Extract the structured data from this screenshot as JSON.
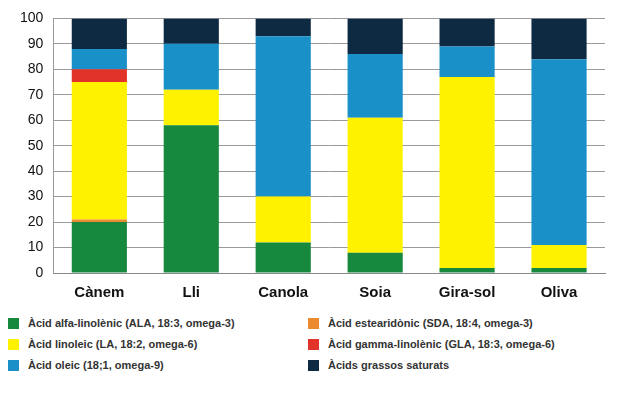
{
  "chart_data": {
    "type": "bar",
    "stacked": true,
    "grid": true,
    "legend": "bottom",
    "categories": [
      "Cànem",
      "Lli",
      "Canola",
      "Soia",
      "Gira-sol",
      "Oliva"
    ],
    "ylim": [
      0,
      100
    ],
    "yticks": [
      0,
      10,
      20,
      30,
      40,
      50,
      60,
      70,
      80,
      90,
      100
    ],
    "series": [
      {
        "name": "Àcid alfa-linolènic (ALA, 18:3, omega-3)",
        "color": "#17893f",
        "values": [
          20,
          58,
          12,
          8,
          2,
          2
        ]
      },
      {
        "name": "Àcid estearidònic (SDA, 18:4, omega-3)",
        "color": "#ec8a2f",
        "values": [
          1,
          0,
          0,
          0,
          0,
          0
        ]
      },
      {
        "name": "Àcid linoleic (LA, 18:2, omega-6)",
        "color": "#fff200",
        "values": [
          54,
          14,
          18,
          53,
          75,
          9
        ]
      },
      {
        "name": "Àcid gamma-linolènic (GLA, 18:3, omega-6)",
        "color": "#e2332b",
        "values": [
          5,
          0,
          0,
          0,
          0,
          0
        ]
      },
      {
        "name": "Àcid oleic (18;1, omega-9)",
        "color": "#1a90c8",
        "values": [
          8,
          18,
          63,
          25,
          12,
          73
        ]
      },
      {
        "name": "Àcids grassos saturats",
        "color": "#0e2a43",
        "values": [
          12,
          10,
          7,
          14,
          11,
          16
        ]
      }
    ]
  }
}
